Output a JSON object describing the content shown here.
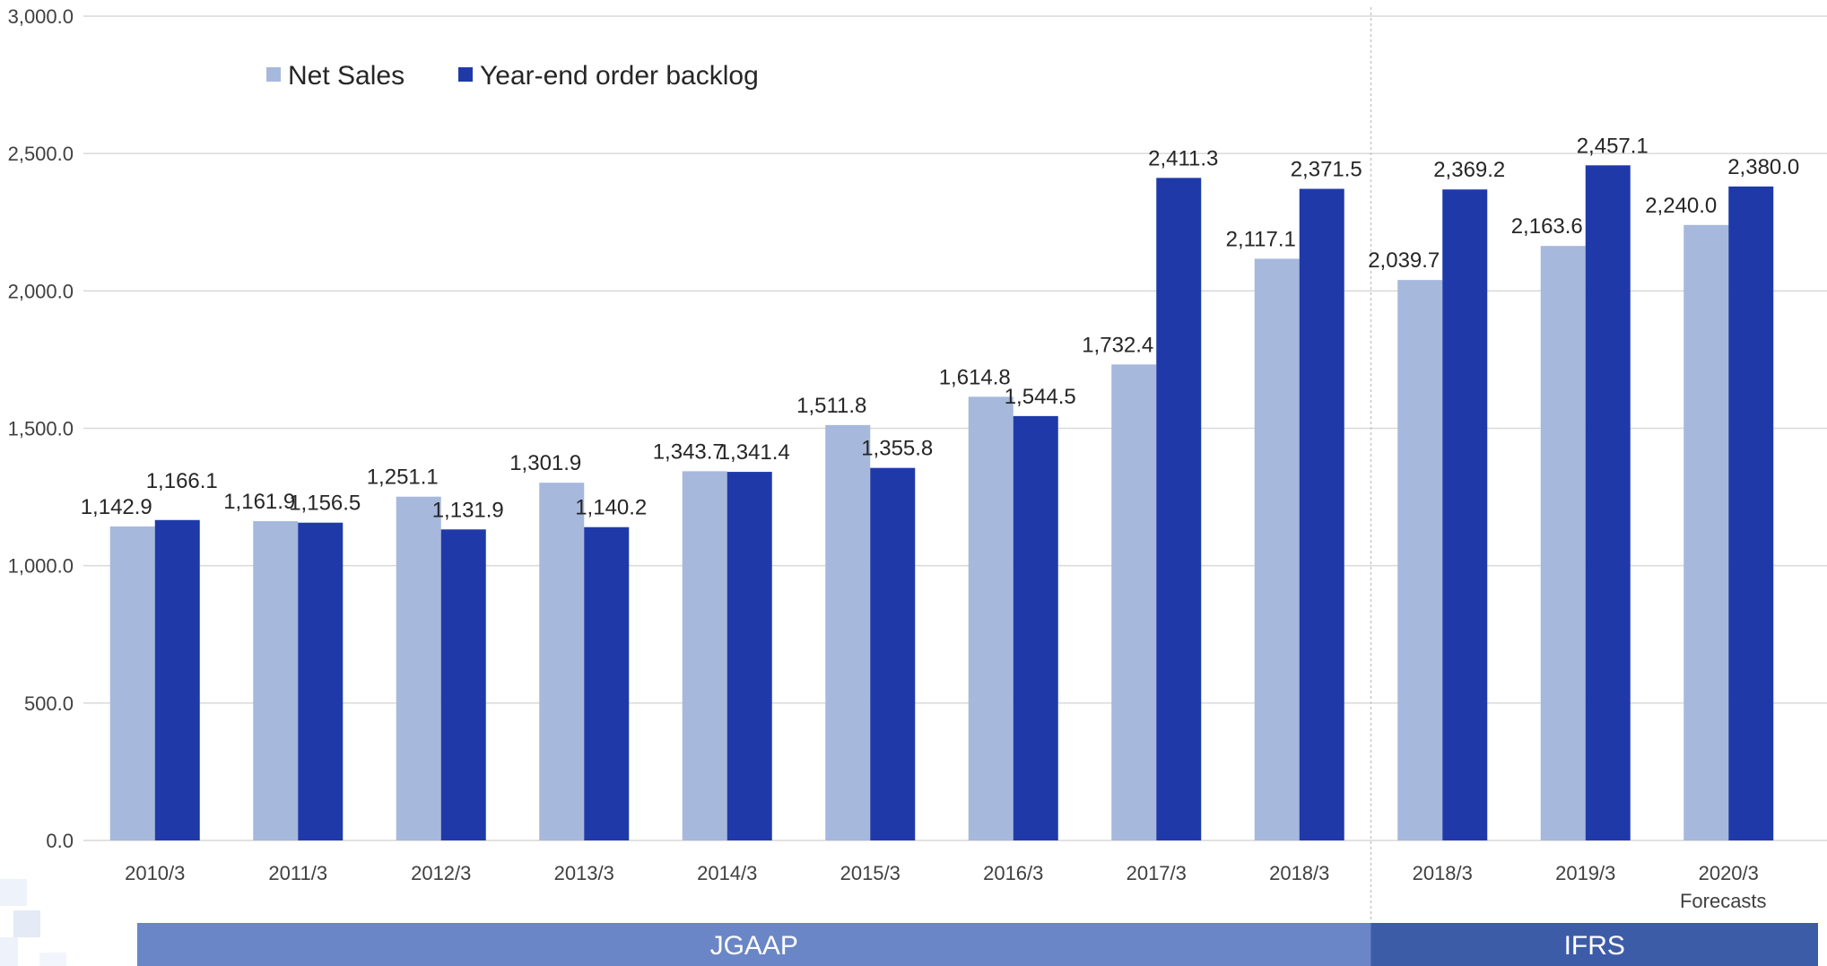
{
  "chart_data": {
    "type": "bar",
    "categories": [
      "2010/3",
      "2011/3",
      "2012/3",
      "2013/3",
      "2014/3",
      "2015/3",
      "2016/3",
      "2017/3",
      "2018/3",
      "2018/3",
      "2019/3",
      "2020/3"
    ],
    "category_sublabels": [
      "",
      "",
      "",
      "",
      "",
      "",
      "",
      "",
      "",
      "",
      "",
      "Forecasts"
    ],
    "series": [
      {
        "name": "Net Sales",
        "color": "#a6b8dc",
        "values": [
          1142.9,
          1161.9,
          1251.1,
          1301.9,
          1343.7,
          1511.8,
          1614.8,
          1732.4,
          2117.1,
          2039.7,
          2163.6,
          2240.0
        ],
        "labels": [
          "1,142.9",
          "1,161.9",
          "1,251.1",
          "1,301.9",
          "1,343.7",
          "1,511.8",
          "1,614.8",
          "1,732.4",
          "2,117.1",
          "2,039.7",
          "2,163.6",
          "2,240.0"
        ]
      },
      {
        "name": "Year-end order backlog",
        "color": "#1f3aa8",
        "values": [
          1166.1,
          1156.5,
          1131.9,
          1140.2,
          1341.4,
          1355.8,
          1544.5,
          2411.3,
          2371.5,
          2369.2,
          2457.1,
          2380.0
        ],
        "labels": [
          "1,166.1",
          "1,156.5",
          "1,131.9",
          "1,140.2",
          "1,341.4",
          "1,355.8",
          "1,544.5",
          "2,411.3",
          "2,371.5",
          "2,369.2",
          "2,457.1",
          "2,380.0"
        ]
      }
    ],
    "ylim": [
      0,
      3000
    ],
    "y_ticks": [
      "0.0",
      "500.0",
      "1,000.0",
      "1,500.0",
      "2,000.0",
      "2,500.0",
      "3,000.0"
    ],
    "grid": true,
    "legend_position": "top-left",
    "groups": [
      {
        "label": "JGAAP",
        "color": "#6a86c6",
        "from_index": 0,
        "to_index": 8
      },
      {
        "label": "IFRS",
        "color": "#3d5ca8",
        "from_index": 9,
        "to_index": 11
      }
    ]
  }
}
